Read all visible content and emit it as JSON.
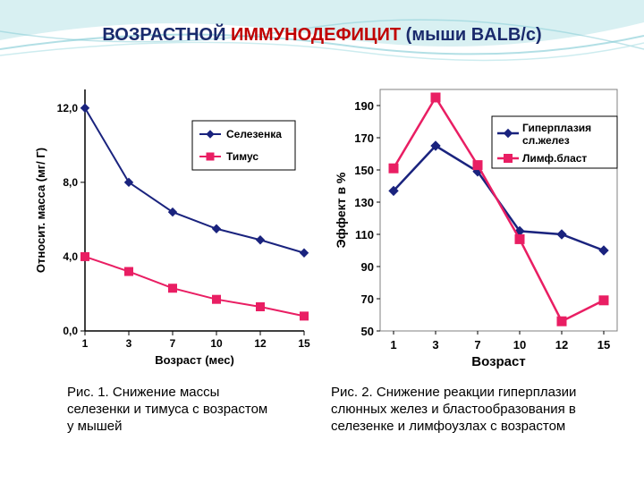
{
  "title_part1": "ВОЗРАСТНОЙ  ",
  "title_red": "ИММУНОДЕФИЦИТ",
  "title_part2": " (мыши BALB/c)",
  "chart1": {
    "type": "line",
    "ylabel": "Относит. масса (мг/ Г)",
    "xlabel": "Возраст (мес)",
    "x_categories": [
      "1",
      "3",
      "7",
      "10",
      "12",
      "15"
    ],
    "y_ticks": [
      "0,0",
      "4,0",
      "8,0",
      "12,0"
    ],
    "ylim": [
      0,
      13
    ],
    "series": [
      {
        "name": "Селезенка",
        "color": "#1a237e",
        "marker": "diamond",
        "values": [
          12.0,
          8.0,
          6.4,
          5.5,
          4.9,
          4.2
        ]
      },
      {
        "name": "Тимус",
        "color": "#e91e63",
        "marker": "square",
        "values": [
          4.0,
          3.2,
          2.3,
          1.7,
          1.3,
          0.8
        ]
      }
    ],
    "legend_border": "#000000",
    "axis_color": "#000000",
    "label_fontsize": 13,
    "tick_fontsize": 12
  },
  "chart2": {
    "type": "line",
    "ylabel": "Эффект в %",
    "xlabel": "Возраст",
    "x_categories": [
      "1",
      "3",
      "7",
      "10",
      "12",
      "15"
    ],
    "y_ticks": [
      "50",
      "70",
      "90",
      "110",
      "130",
      "150",
      "170",
      "190"
    ],
    "ylim": [
      50,
      200
    ],
    "series": [
      {
        "name": "Гиперплазия сл.желез",
        "color": "#1a237e",
        "marker": "diamond",
        "values": [
          137,
          165,
          149,
          112,
          110,
          100
        ]
      },
      {
        "name": "Лимф.бласт",
        "color": "#e91e63",
        "marker": "square",
        "values": [
          151,
          195,
          153,
          107,
          56,
          69
        ]
      }
    ],
    "legend_border": "#000000",
    "plot_border": "#808080",
    "axis_color": "#000000",
    "label_fontsize": 14,
    "tick_fontsize": 13
  },
  "caption1": "Рис. 1. Снижение массы селезенки и тимуса с возрастом у мышей",
  "caption2": "Рис. 2. Снижение реакции гиперплазии слюнных желез и бластообразования в селезенке и лимфоузлах с возрастом",
  "wave_color1": "#b8e4e8",
  "wave_color2": "#7fc9d4"
}
